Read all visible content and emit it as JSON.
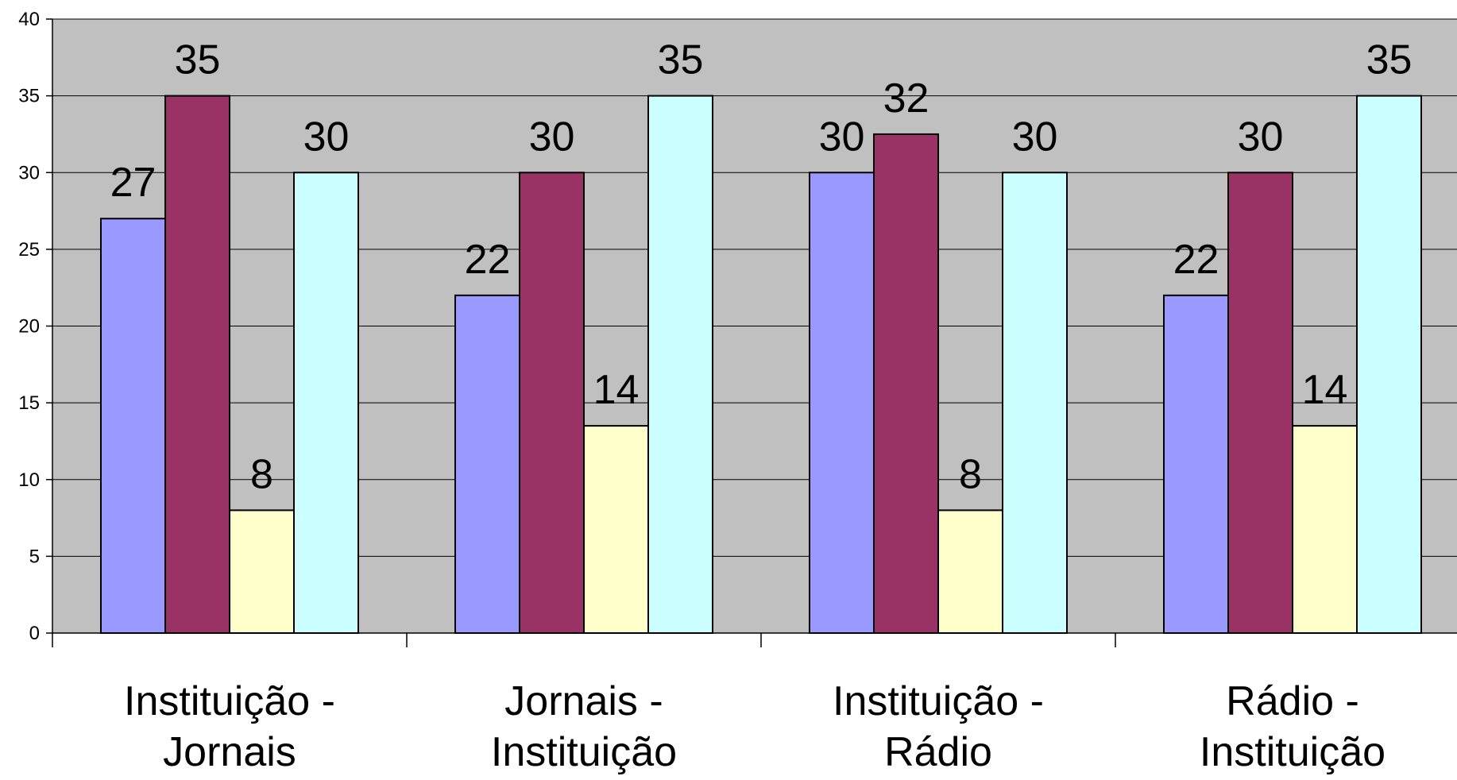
{
  "chart_data": {
    "type": "bar",
    "categories": [
      [
        "Instituição -",
        "Jornais"
      ],
      [
        "Jornais -",
        "Instituição"
      ],
      [
        "Instituição -",
        "Rádio"
      ],
      [
        "Rádio -",
        "Instituição"
      ]
    ],
    "series": [
      {
        "values": [
          27,
          22,
          30,
          22
        ],
        "display": [
          "27",
          "22",
          "30",
          "22"
        ],
        "color": "#9999ff"
      },
      {
        "values": [
          35,
          30,
          32.5,
          30
        ],
        "display": [
          "35",
          "30",
          "32",
          "30"
        ],
        "color": "#993366"
      },
      {
        "values": [
          8,
          13.5,
          8,
          13.5
        ],
        "display": [
          "8",
          "14",
          "8",
          "14"
        ],
        "color": "#ffffcc"
      },
      {
        "values": [
          30,
          35,
          30,
          35
        ],
        "display": [
          "30",
          "35",
          "30",
          "35"
        ],
        "color": "#ccffff"
      }
    ],
    "ylim": [
      0,
      40
    ],
    "yticks": [
      "0",
      "5",
      "10",
      "15",
      "20",
      "25",
      "30",
      "35",
      "40"
    ],
    "grid": true,
    "legend": "none",
    "plot_background": "#c0c0c0",
    "title": "",
    "xlabel": "",
    "ylabel": ""
  }
}
